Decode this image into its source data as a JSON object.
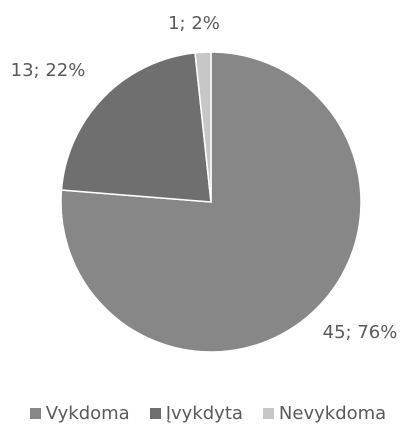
{
  "chart_data": {
    "type": "pie",
    "title": "",
    "categories": [
      "Vykdoma",
      "Įvykdyta",
      "Nevykdoma"
    ],
    "values": [
      45,
      13,
      1
    ],
    "percent_labels": [
      "45; 76%",
      "13; 22%",
      "1; 2%"
    ],
    "colors": [
      "#878787",
      "#6f6f6f",
      "#c7c7c7"
    ],
    "start_angle_deg": 0,
    "direction": "clockwise",
    "legend_position": "bottom"
  },
  "legend": {
    "items": [
      {
        "label": "Vykdoma",
        "color": "#878787"
      },
      {
        "label": "Įvykdyta",
        "color": "#6f6f6f"
      },
      {
        "label": "Nevykdoma",
        "color": "#c7c7c7"
      }
    ]
  }
}
